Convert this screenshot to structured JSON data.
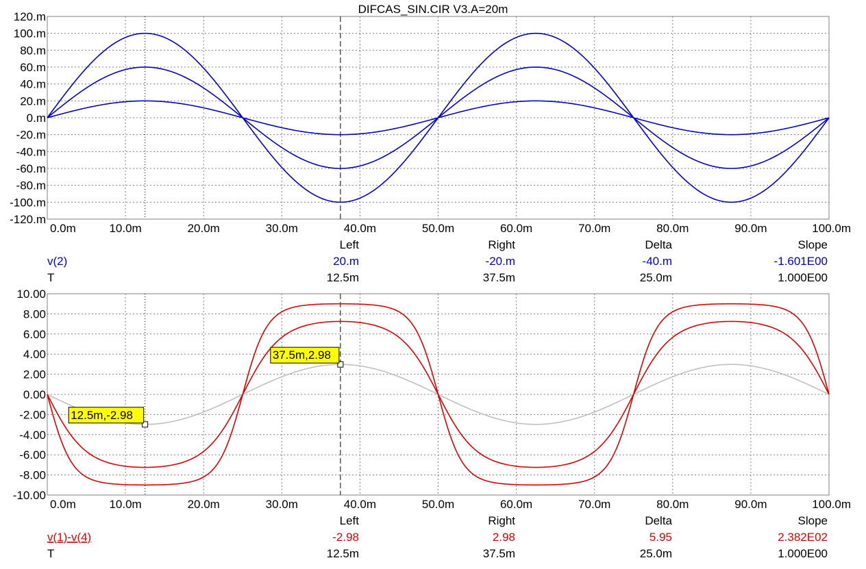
{
  "title": "DIFCAS_SIN.CIR V3.A=20m",
  "colors": {
    "blue": "#0000cc",
    "red": "#dd0000",
    "gray": "#c0c0c0",
    "grid": "#808080",
    "label_bg": "#ffff00",
    "text": "#000000"
  },
  "cursor_table_headers": [
    "Left",
    "Right",
    "Delta",
    "Slope"
  ],
  "chart_data": [
    {
      "type": "line",
      "title": "DIFCAS_SIN.CIR V3.A=20m",
      "xlim": [
        0,
        0.1
      ],
      "ylim": [
        -0.12,
        0.12
      ],
      "x_ticks": [
        "0.0m",
        "10.0m",
        "20.0m",
        "30.0m",
        "40.0m",
        "50.0m",
        "60.0m",
        "70.0m",
        "80.0m",
        "90.0m",
        "100.0m"
      ],
      "y_ticks": [
        "120.m",
        "100.m",
        "80.m",
        "60.m",
        "40.m",
        "20.m",
        "0.m",
        "-20.m",
        "-40.m",
        "-60.m",
        "-80.m",
        "-100.m",
        "-120.m"
      ],
      "grid": true,
      "series": [
        {
          "waveform": "sine",
          "amplitude": 0.1,
          "period": 0.05,
          "color": "blue"
        },
        {
          "waveform": "sine",
          "amplitude": 0.06,
          "period": 0.05,
          "color": "blue"
        },
        {
          "waveform": "sine",
          "amplitude": 0.02,
          "period": 0.05,
          "color": "blue"
        }
      ],
      "cursors": {
        "left_x": 0.0125,
        "right_x": 0.0375
      },
      "readout": {
        "rows": [
          {
            "label": "v(2)",
            "color": "blue",
            "left": "20.m",
            "right": "-20.m",
            "delta": "-40.m",
            "slope": "-1.601E00"
          },
          {
            "label": "T",
            "color": "black",
            "left": "12.5m",
            "right": "37.5m",
            "delta": "25.0m",
            "slope": "1.000E00"
          }
        ]
      }
    },
    {
      "type": "line",
      "xlim": [
        0,
        0.1
      ],
      "ylim": [
        -10,
        10
      ],
      "x_ticks": [
        "0.0m",
        "10.0m",
        "20.0m",
        "30.0m",
        "40.0m",
        "50.0m",
        "60.0m",
        "70.0m",
        "80.0m",
        "90.0m",
        "100.0m"
      ],
      "y_ticks": [
        "10.00",
        "8.00",
        "6.00",
        "4.00",
        "2.00",
        "0.00",
        "-2.00",
        "-4.00",
        "-6.00",
        "-8.00",
        "-10.00"
      ],
      "grid": true,
      "series": [
        {
          "waveform": "sine",
          "amplitude": -2.98,
          "period": 0.05,
          "color": "gray"
        },
        {
          "waveform": "tanh-sine",
          "amplitude": -7.25,
          "saturation": 9.6,
          "drive": 0.06,
          "period": 0.05,
          "color": "red"
        },
        {
          "waveform": "tanh-sine",
          "amplitude": -9.0,
          "saturation": 9.6,
          "drive": 0.1,
          "period": 0.05,
          "color": "red"
        }
      ],
      "cursors": {
        "left_x": 0.0125,
        "right_x": 0.0375
      },
      "point_labels": [
        {
          "text": "12.5m,-2.98",
          "x": 0.0125,
          "y": -2.98
        },
        {
          "text": "37.5m,2.98",
          "x": 0.0375,
          "y": 2.98
        }
      ],
      "readout": {
        "rows": [
          {
            "label": "v(1)-v(4)",
            "color": "red",
            "underline": true,
            "left": "-2.98",
            "right": "2.98",
            "delta": "5.95",
            "slope": "2.382E02"
          },
          {
            "label": "T",
            "color": "black",
            "left": "12.5m",
            "right": "37.5m",
            "delta": "25.0m",
            "slope": "1.000E00"
          }
        ]
      }
    }
  ]
}
